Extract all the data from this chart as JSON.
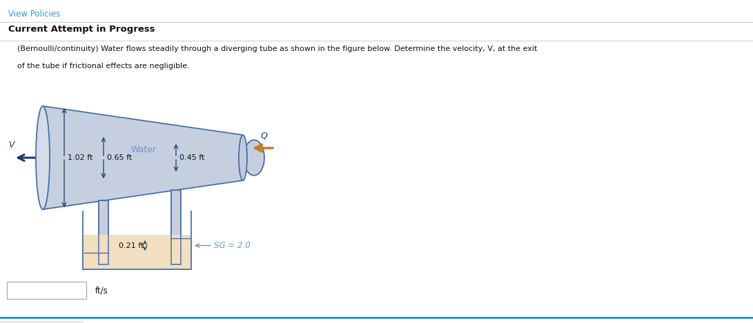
{
  "bg_color": "#ffffff",
  "title_text": "View Policies",
  "title_color": "#3399cc",
  "header_text": "Current Attempt in Progress",
  "problem_line1": "(Bernoulli/continuity) Water flows steadily through a diverging tube as shown in the figure below. Determine the velocity, V, at the exit",
  "problem_line2": "of the tube if frictional effects are negligible.",
  "tube_fill_color": "#c5cfe0",
  "tube_edge_color": "#4a6fa5",
  "manometer_fluid_color": "#f2dfc0",
  "arrow_dark": "#1a3a6b",
  "arrow_orange": "#c87820",
  "water_label_color": "#6699cc",
  "sg_label_color": "#6699cc",
  "label_V": "V",
  "label_Q": "Q",
  "label_Water": "Water",
  "label_102": "1.02 ft",
  "label_065": "0.65 ft",
  "label_045": "0.45 ft",
  "label_021": "0.21 ft",
  "label_SG": "SG = 2.0",
  "label_fts": "ft/s",
  "bottom_line_color": "#2288cc",
  "separator_color": "#cccccc"
}
